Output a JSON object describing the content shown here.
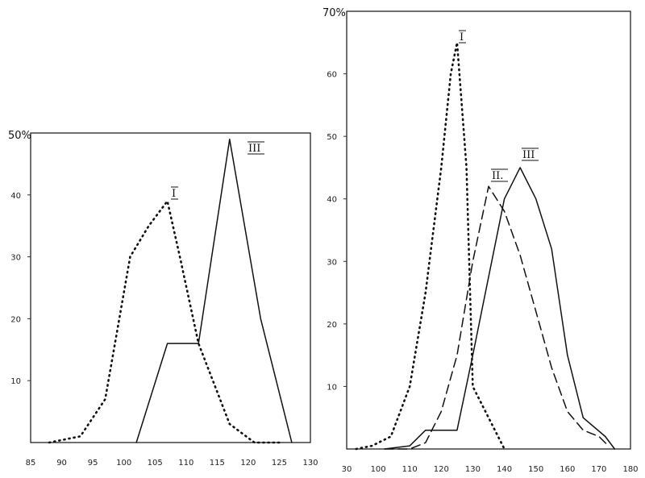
{
  "chart_data": [
    {
      "type": "line",
      "y_top_label": "50%",
      "ylim": [
        0,
        50
      ],
      "xlim": [
        85,
        130
      ],
      "x_ticks": [
        "85",
        "90",
        "95",
        "100",
        "105",
        "110",
        "115",
        "120",
        "125",
        "130"
      ],
      "y_ticks": [
        "10",
        "20",
        "30",
        "40"
      ],
      "grid": false,
      "series": [
        {
          "name": "I",
          "style": "dotted",
          "x": [
            88,
            93,
            97,
            101,
            104,
            107,
            109,
            112,
            117,
            121,
            125
          ],
          "y": [
            0,
            1,
            7,
            30,
            35,
            39,
            30,
            16,
            3,
            0,
            0
          ]
        },
        {
          "name": "III",
          "style": "solid",
          "x": [
            102,
            107,
            112,
            117,
            122,
            127
          ],
          "y": [
            0,
            16,
            16,
            49,
            20,
            0
          ]
        }
      ],
      "annotations": [
        "I",
        "III"
      ]
    },
    {
      "type": "line",
      "y_top_label": "70%",
      "ylim": [
        0,
        70
      ],
      "xlim": [
        90,
        180
      ],
      "x_ticks": [
        "30",
        "100",
        "110",
        "120",
        "130",
        "140",
        "150",
        "160",
        "170",
        "180"
      ],
      "y_ticks": [
        "10",
        "20",
        "30",
        "40",
        "50",
        "60"
      ],
      "grid": false,
      "series": [
        {
          "name": "I",
          "style": "dotted",
          "x": [
            93,
            98,
            104,
            110,
            115,
            120,
            123,
            125,
            128,
            130,
            135,
            140
          ],
          "y": [
            0,
            0.5,
            2,
            10,
            25,
            45,
            60,
            65,
            45,
            10,
            5,
            0
          ]
        },
        {
          "name": "II.",
          "style": "dashed",
          "x": [
            102,
            110,
            115,
            120,
            125,
            130,
            135,
            140,
            145,
            150,
            155,
            160,
            165,
            170,
            173
          ],
          "y": [
            0,
            0,
            1,
            6,
            15,
            30,
            42,
            38,
            31,
            22,
            13,
            6,
            3,
            2,
            0.5
          ]
        },
        {
          "name": "III",
          "style": "solid",
          "x": [
            102,
            110,
            115,
            120,
            125,
            130,
            140,
            145,
            150,
            155,
            160,
            165,
            172,
            175
          ],
          "y": [
            0,
            0.5,
            3,
            3,
            3,
            15,
            40,
            45,
            40,
            32,
            15,
            5,
            2,
            0
          ]
        }
      ],
      "annotations": [
        "I",
        "II.",
        "III"
      ]
    }
  ]
}
